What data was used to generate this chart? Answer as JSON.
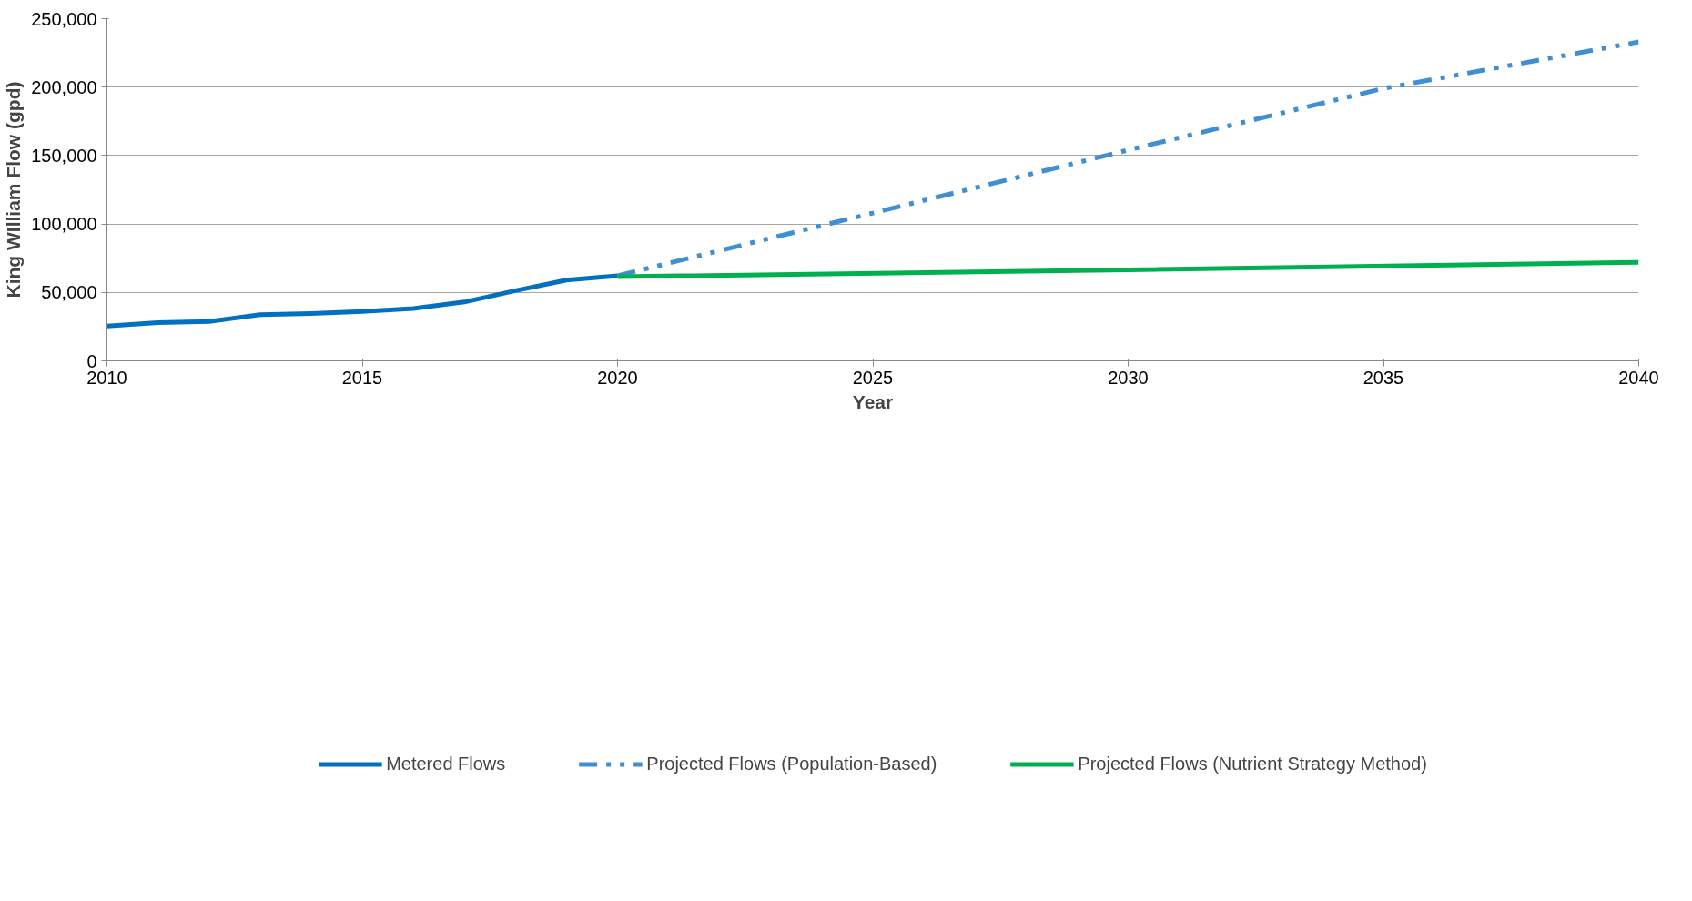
{
  "chart_data": {
    "type": "line",
    "xlabel": "Year",
    "ylabel": "King WIlliam Flow (gpd)",
    "xlim": [
      2010,
      2040
    ],
    "xticks": [
      2010,
      2015,
      2020,
      2025,
      2030,
      2035,
      2040
    ],
    "ylim": [
      0,
      250000
    ],
    "yticks": [
      {
        "value": 0,
        "label": "0"
      },
      {
        "value": 50000,
        "label": "50,000"
      },
      {
        "value": 100000,
        "label": "100,000"
      },
      {
        "value": 150000,
        "label": "150,000"
      },
      {
        "value": 200000,
        "label": "200,000"
      },
      {
        "value": 250000,
        "label": "250,000"
      }
    ],
    "grid": "y",
    "legend": "bottom",
    "marker": "none",
    "series": [
      {
        "name": "Metered Flows",
        "color": "#0070c0",
        "line_style": "solid",
        "x": [
          2010,
          2011,
          2012,
          2013,
          2014,
          2015,
          2016,
          2017,
          2018,
          2019,
          2020
        ],
        "values": [
          25500,
          28000,
          28700,
          33800,
          34600,
          36000,
          38200,
          43000,
          51300,
          59000,
          62200
        ]
      },
      {
        "name": "Projected Flows (Population-Based)",
        "color": "#3f8fd2",
        "line_style": "dashed",
        "x": [
          2020,
          2025,
          2030,
          2035,
          2040
        ],
        "values": [
          62200,
          108000,
          154000,
          199000,
          233000
        ]
      },
      {
        "name": "Projected Flows (Nutrient Strategy Method)",
        "color": "#00b050",
        "line_style": "solid",
        "x": [
          2020,
          2030,
          2040
        ],
        "values": [
          61500,
          66500,
          72000
        ]
      }
    ]
  }
}
